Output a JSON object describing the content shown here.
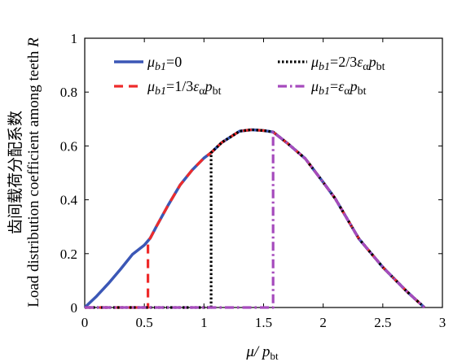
{
  "chart_data": {
    "type": "line",
    "xlabel": {
      "main": "μ/ p",
      "sub": "bt"
    },
    "ylabel": {
      "cn": "齿间载荷分配系数",
      "en": "Load distribution coefficient among teeth ",
      "var": "R"
    },
    "xlim": [
      0,
      3
    ],
    "ylim": [
      0,
      1
    ],
    "xticks": [
      "0",
      "0.5",
      "1",
      "1.5",
      "2",
      "2.5",
      "3"
    ],
    "yticks": [
      "0",
      "0.2",
      "0.4",
      "0.6",
      "0.8",
      "1"
    ],
    "grid": false,
    "legend_position": "top",
    "curve": {
      "x": [
        0.0,
        0.1,
        0.2,
        0.3,
        0.4,
        0.5,
        0.55,
        0.6,
        0.7,
        0.8,
        0.9,
        1.0,
        1.06,
        1.15,
        1.3,
        1.4,
        1.5,
        1.58,
        1.7,
        1.85,
        2.0,
        2.1,
        2.3,
        2.5,
        2.7,
        2.85
      ],
      "y": [
        0.0,
        0.042,
        0.09,
        0.142,
        0.197,
        0.232,
        0.258,
        0.3,
        0.38,
        0.455,
        0.51,
        0.555,
        0.575,
        0.613,
        0.655,
        0.66,
        0.657,
        0.652,
        0.61,
        0.553,
        0.465,
        0.405,
        0.255,
        0.15,
        0.06,
        0.0
      ]
    },
    "series": [
      {
        "name": "μ_b1=0",
        "label_parts": [
          "μ",
          "b1",
          "=0"
        ],
        "color": "#3b57b6",
        "dash": "solid",
        "x_offset": 0
      },
      {
        "name": "μ_b1=1/3ε_α p_bt",
        "label_parts": [
          "μ",
          "b1",
          "=1/3",
          "ε",
          "α",
          "p",
          "bt"
        ],
        "color": "#ee2b2b",
        "dash": "dash",
        "x_offset": 0.53
      },
      {
        "name": "μ_b1=2/3ε_α p_bt",
        "label_parts": [
          "μ",
          "b1",
          "=2/3",
          "ε",
          "α",
          "p",
          "bt"
        ],
        "color": "#000000",
        "dash": "dot",
        "x_offset": 1.06
      },
      {
        "name": "μ_b1=ε_α p_bt",
        "label_parts": [
          "μ",
          "b1",
          "=",
          "ε",
          "α",
          "p",
          "bt"
        ],
        "color": "#a64bbd",
        "dash": "dashdot",
        "x_offset": 1.58
      }
    ]
  }
}
